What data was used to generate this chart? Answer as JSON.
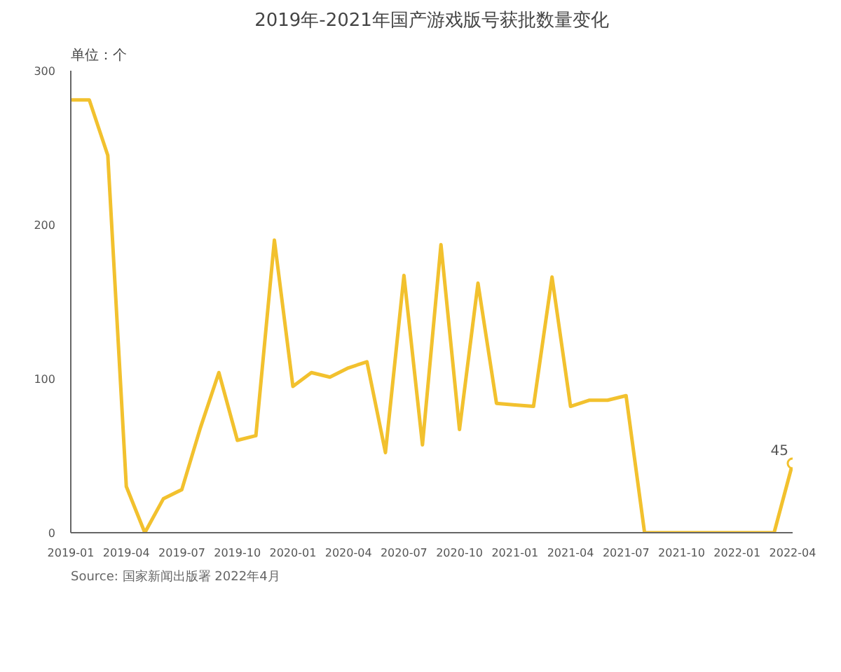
{
  "chart_data": {
    "type": "line",
    "title": "2019年-2021年国产游戏版号获批数量变化",
    "ylabel": "单位：个",
    "x": [
      "2019-01",
      "2019-02",
      "2019-03",
      "2019-04",
      "2019-05",
      "2019-06",
      "2019-07",
      "2019-08",
      "2019-09",
      "2019-10",
      "2019-11",
      "2019-12",
      "2020-01",
      "2020-02",
      "2020-03",
      "2020-04",
      "2020-05",
      "2020-06",
      "2020-07",
      "2020-08",
      "2020-09",
      "2020-10",
      "2020-11",
      "2020-12",
      "2021-01",
      "2021-02",
      "2021-03",
      "2021-04",
      "2021-05",
      "2021-06",
      "2021-07",
      "2021-08",
      "2021-09",
      "2021-10",
      "2021-11",
      "2021-12",
      "2022-01",
      "2022-02",
      "2022-03",
      "2022-04"
    ],
    "series": [
      {
        "color": "#f2c12e",
        "values": [
          281,
          281,
          245,
          30,
          0,
          22,
          28,
          68,
          104,
          60,
          63,
          190,
          95,
          104,
          101,
          107,
          111,
          52,
          167,
          57,
          187,
          67,
          162,
          84,
          83,
          82,
          166,
          82,
          86,
          86,
          89,
          0,
          0,
          0,
          0,
          0,
          0,
          0,
          0,
          45
        ],
        "value_labels": [
          null,
          null,
          null,
          null,
          null,
          null,
          null,
          null,
          null,
          null,
          null,
          null,
          null,
          null,
          null,
          null,
          null,
          null,
          null,
          null,
          null,
          null,
          null,
          null,
          null,
          null,
          null,
          null,
          null,
          null,
          null,
          null,
          null,
          null,
          null,
          null,
          null,
          null,
          null,
          "45"
        ]
      }
    ],
    "xlim": [
      "2019-01",
      "2022-04"
    ],
    "xticks": [
      "2019-01",
      "2019-04",
      "2019-07",
      "2019-10",
      "2020-01",
      "2020-04",
      "2020-07",
      "2020-10",
      "2021-01",
      "2021-04",
      "2021-07",
      "2021-10",
      "2022-01",
      "2022-04"
    ],
    "ylim": [
      0,
      300
    ],
    "yticks": [
      0,
      100,
      200,
      300
    ],
    "grid": false,
    "marker": "none",
    "line_style": "solid",
    "annotations": [
      "Source: 国家新闻出版署 2022年4月"
    ]
  }
}
